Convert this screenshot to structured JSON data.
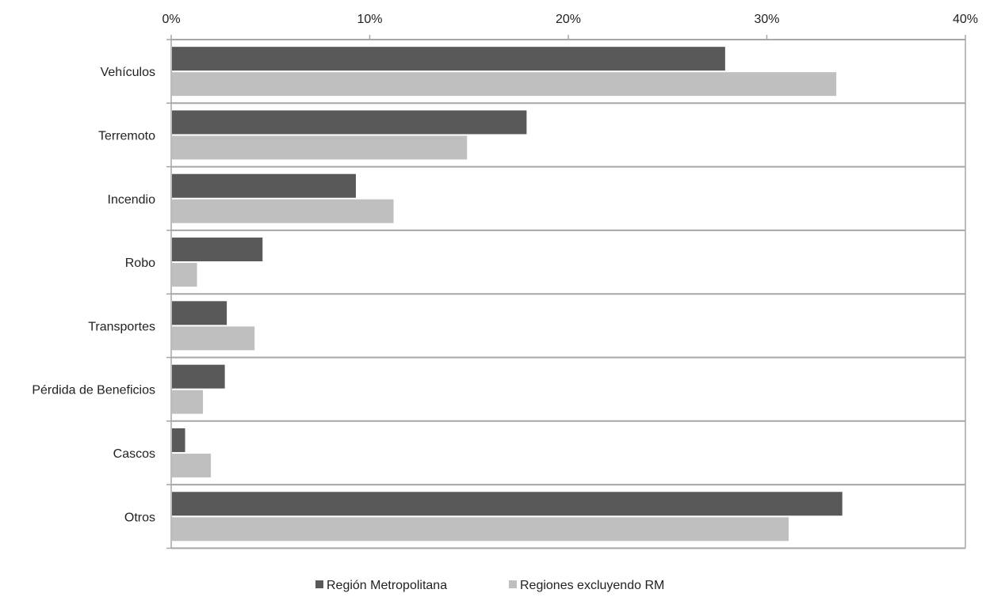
{
  "chart_data": {
    "type": "bar",
    "orientation": "horizontal",
    "title": "",
    "xlabel": "",
    "ylabel": "",
    "xlim": [
      0,
      40
    ],
    "ticks": [
      0,
      10,
      20,
      30,
      40
    ],
    "tick_labels": [
      "0%",
      "10%",
      "20%",
      "30%",
      "40%"
    ],
    "axis_position": "top",
    "grid": false,
    "legend_position": "bottom-center",
    "categories": [
      "Vehículos",
      "Terremoto",
      "Incendio",
      "Robo",
      "Transportes",
      "Pérdida de Beneficios",
      "Cascos",
      "Otros"
    ],
    "series": [
      {
        "name": "Región Metropolitana",
        "color": "#595959",
        "values": [
          27.9,
          17.9,
          9.3,
          4.6,
          2.8,
          2.7,
          0.7,
          33.8
        ]
      },
      {
        "name": "Regiones excluyendo RM",
        "color": "#bfbfbf",
        "values": [
          33.5,
          14.9,
          11.2,
          1.3,
          4.2,
          1.6,
          2.0,
          31.1
        ]
      }
    ]
  }
}
